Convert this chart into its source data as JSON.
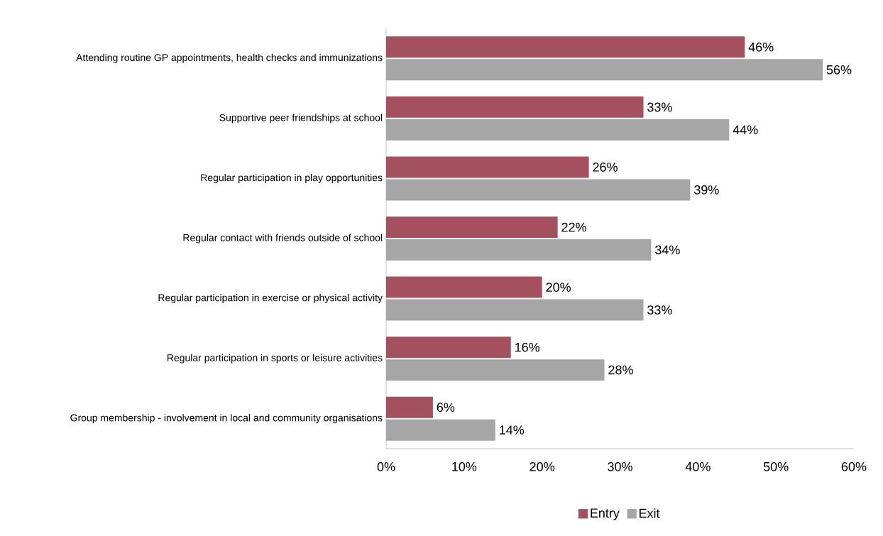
{
  "chart_data": {
    "type": "bar",
    "orientation": "horizontal",
    "categories": [
      "Attending routine GP appointments, health checks and immunizations",
      "Supportive peer friendships at school",
      "Regular participation in play opportunities",
      "Regular contact with friends outside of school",
      "Regular participation in exercise or physical activity",
      "Regular participation in sports or leisure activities",
      "Group membership - involvement in local and community organisations"
    ],
    "series": [
      {
        "name": "Entry",
        "color": "#a5505f",
        "values": [
          46,
          33,
          26,
          22,
          20,
          16,
          6
        ],
        "value_labels": [
          "46%",
          "33%",
          "26%",
          "22%",
          "20%",
          "16%",
          "6%"
        ]
      },
      {
        "name": "Exit",
        "color": "#a6a6a6",
        "values": [
          56,
          44,
          39,
          34,
          33,
          28,
          14
        ],
        "value_labels": [
          "56%",
          "44%",
          "39%",
          "34%",
          "33%",
          "28%",
          "14%"
        ]
      }
    ],
    "xlim": [
      0,
      60
    ],
    "xticks": [
      {
        "value": 0,
        "label": "0%"
      },
      {
        "value": 10,
        "label": "10%"
      },
      {
        "value": 20,
        "label": "20%"
      },
      {
        "value": 30,
        "label": "30%"
      },
      {
        "value": 40,
        "label": "40%"
      },
      {
        "value": 50,
        "label": "50%"
      },
      {
        "value": 60,
        "label": "60%"
      }
    ],
    "grid": false,
    "legend": "bottom"
  }
}
